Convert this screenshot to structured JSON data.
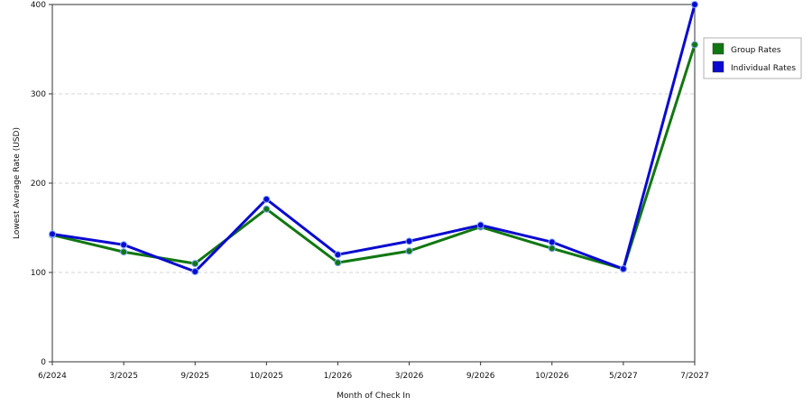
{
  "chart_data": {
    "type": "line",
    "title": "",
    "xlabel": "Month of Check In",
    "ylabel": "Lowest Average Rate (USD)",
    "ylim": [
      0,
      400
    ],
    "yticks": [
      0,
      100,
      200,
      300,
      400
    ],
    "grid": "horizontal dashed",
    "legend_position": "right",
    "categories": [
      "6/2024",
      "3/2025",
      "9/2025",
      "10/2025",
      "1/2026",
      "3/2026",
      "9/2026",
      "10/2026",
      "5/2027",
      "7/2027"
    ],
    "series": [
      {
        "name": "Group Rates",
        "color": "#117711",
        "values": [
          142,
          123,
          110,
          171,
          111,
          124,
          151,
          127,
          104,
          355
        ]
      },
      {
        "name": "Individual Rates",
        "color": "#0a0ad0",
        "values": [
          143,
          131,
          101,
          182,
          120,
          135,
          153,
          134,
          104,
          400
        ]
      }
    ]
  }
}
